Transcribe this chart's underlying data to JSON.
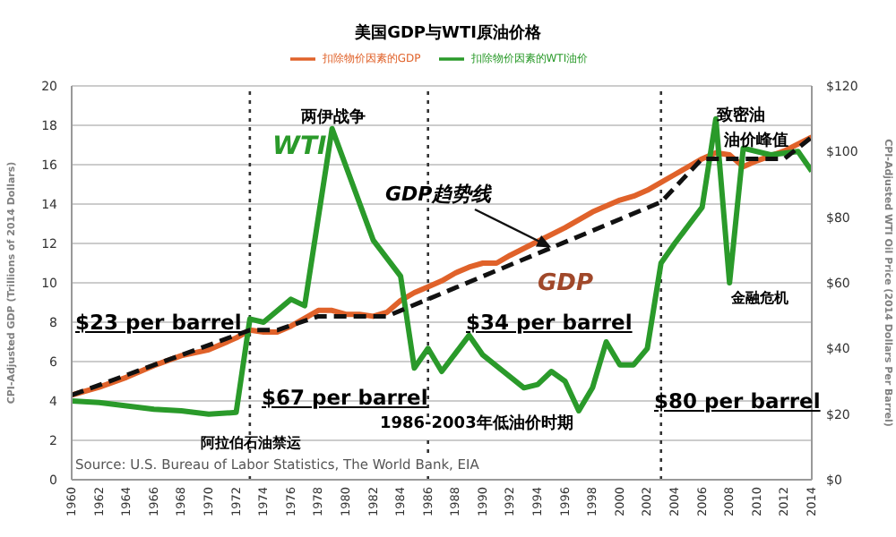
{
  "chart_data": {
    "type": "line",
    "title": "美国GDP与WTI原油价格",
    "ylabel": "CPI-Adjusted GDP (Trillions of 2014 Dollars)",
    "y2label": "CPI-Adjusted WTI Oil Price (2014 Dollars Per Barrel)",
    "xlim": [
      1960,
      2014
    ],
    "xticks": [
      1960,
      1962,
      1964,
      1966,
      1968,
      1970,
      1972,
      1974,
      1976,
      1978,
      1980,
      1982,
      1984,
      1986,
      1988,
      1990,
      1992,
      1994,
      1996,
      1998,
      2000,
      2002,
      2004,
      2006,
      2008,
      2010,
      2012,
      2014
    ],
    "ylim": [
      0,
      20
    ],
    "yticks": [
      0,
      2,
      4,
      6,
      8,
      10,
      12,
      14,
      16,
      18,
      20
    ],
    "y2lim": [
      0,
      120
    ],
    "y2ticks": [
      {
        "value": 0,
        "label": "$0"
      },
      {
        "value": 20,
        "label": "$20"
      },
      {
        "value": 40,
        "label": "$40"
      },
      {
        "value": 60,
        "label": "$60"
      },
      {
        "value": 80,
        "label": "$80"
      },
      {
        "value": 100,
        "label": "$100"
      },
      {
        "value": 120,
        "label": "$120"
      }
    ],
    "grid": "y",
    "legend": "top",
    "line_style": "solid",
    "marker": "none",
    "series": [
      {
        "name": "扣除物价因素的GDP",
        "color": "#e0622a",
        "x": [
          1960,
          1962,
          1964,
          1966,
          1968,
          1970,
          1972,
          1973,
          1974,
          1975,
          1976,
          1977,
          1978,
          1979,
          1980,
          1981,
          1982,
          1983,
          1984,
          1985,
          1986,
          1987,
          1988,
          1989,
          1990,
          1991,
          1992,
          1994,
          1996,
          1998,
          2000,
          2001,
          2002,
          2004,
          2006,
          2007,
          2008,
          2009,
          2010,
          2012,
          2014
        ],
        "values": [
          4.3,
          4.7,
          5.2,
          5.8,
          6.3,
          6.6,
          7.2,
          7.6,
          7.5,
          7.5,
          7.8,
          8.2,
          8.6,
          8.6,
          8.4,
          8.4,
          8.3,
          8.5,
          9.1,
          9.5,
          9.8,
          10.1,
          10.5,
          10.8,
          11.0,
          11.0,
          11.4,
          12.1,
          12.8,
          13.6,
          14.2,
          14.4,
          14.7,
          15.5,
          16.3,
          16.6,
          16.5,
          15.9,
          16.2,
          16.7,
          17.4
        ]
      },
      {
        "name": "扣除物价因素的WTI油价",
        "axis": "y2",
        "color": "#2a9a2a",
        "x": [
          1960,
          1962,
          1964,
          1966,
          1968,
          1970,
          1972,
          1973,
          1974,
          1976,
          1977,
          1979,
          1982,
          1984,
          1985,
          1986,
          1987,
          1989,
          1990,
          1993,
          1994,
          1995,
          1996,
          1997,
          1998,
          1999,
          2000,
          2001,
          2002,
          2003,
          2004,
          2006,
          2007,
          2008,
          2009,
          2011,
          2013,
          2014
        ],
        "values": [
          24,
          23.5,
          22.5,
          21.5,
          21,
          20,
          20.5,
          49,
          48,
          55,
          53,
          107,
          73,
          62,
          34,
          40,
          33,
          44,
          38,
          28,
          29,
          33,
          30,
          21,
          28,
          42,
          35,
          35,
          40,
          66,
          72,
          83,
          110,
          60,
          101,
          99,
          100,
          94
        ]
      },
      {
        "type": "line",
        "line_style": "dashed",
        "color": "#111111",
        "x": [
          1960,
          1973,
          1975,
          1978,
          1983,
          2003,
          2006,
          2012,
          2014
        ],
        "values": [
          4.3,
          7.6,
          7.6,
          8.3,
          8.3,
          14.1,
          16.3,
          16.3,
          17.4
        ]
      }
    ],
    "ref_lines": [
      {
        "axis": "x",
        "value": 1973,
        "line_style": "dotted",
        "color": "#333333"
      },
      {
        "axis": "x",
        "value": 1986,
        "line_style": "dotted",
        "color": "#333333"
      },
      {
        "axis": "x",
        "value": 2003,
        "line_style": "dotted",
        "color": "#333333"
      }
    ],
    "annotations": [
      "两伊战争",
      "WTI",
      {
        "text": "GDP趋势线",
        "x": 1995,
        "y": 11.8
      },
      "GDP",
      "致密油",
      "油价峰值",
      "金融危机",
      "$23 per barrel",
      "$67 per barrel",
      "$34 per barrel",
      "$80 per barrel",
      "阿拉伯石油禁运",
      "1986-2003年低油价时期",
      "Source: U.S. Bureau of Labor Statistics, The World Bank, EIA"
    ]
  }
}
